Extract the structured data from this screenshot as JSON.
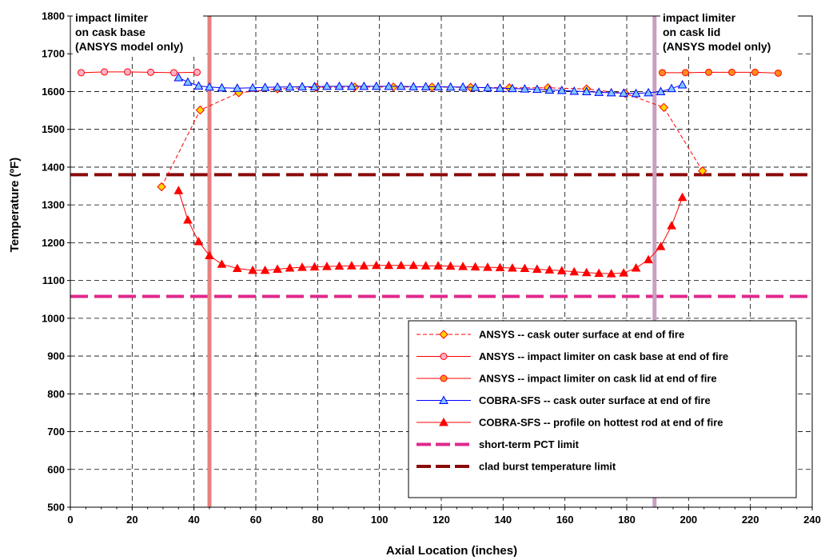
{
  "chart_data": {
    "type": "line",
    "xlabel": "Axial Location (inches)",
    "ylabel": "Temperature (ºF)",
    "xlim": [
      0,
      240
    ],
    "ylim": [
      500,
      1800
    ],
    "xticks": [
      0,
      20,
      40,
      60,
      80,
      100,
      120,
      140,
      160,
      180,
      200,
      220,
      240
    ],
    "yticks": [
      500,
      600,
      700,
      800,
      900,
      1000,
      1100,
      1200,
      1300,
      1400,
      1500,
      1600,
      1700,
      1800
    ],
    "grid": true,
    "legend_position": "bottom-right",
    "annotations": [
      {
        "lines": [
          "impact limiter",
          "on cask base",
          "(ANSYS model only)"
        ]
      },
      {
        "lines": [
          "impact limiter",
          "on cask lid",
          "(ANSYS model only)"
        ]
      }
    ],
    "vertical_lines": [
      {
        "x": 45,
        "color": "#E98080"
      },
      {
        "x": 189,
        "color": "#C9A0C0"
      }
    ],
    "horizontal_limits": [
      {
        "name": "short-term PCT limit",
        "y": 1058,
        "color": "#E0288C"
      },
      {
        "name": "clad burst temperature limit",
        "y": 1380,
        "color": "#8B0A0A"
      }
    ],
    "series": [
      {
        "name": "ANSYS -- cask outer surface at end of fire",
        "color": "#FF0000",
        "marker": "diamond",
        "marker_fill": "#FFD700",
        "dash": true,
        "x": [
          29.5,
          42,
          54.5,
          67,
          79.5,
          92,
          104.5,
          117,
          129.5,
          142,
          154.5,
          167,
          179.5,
          192,
          204.5
        ],
        "y": [
          1348,
          1551,
          1597,
          1607,
          1611,
          1612,
          1612,
          1612,
          1611,
          1610,
          1610,
          1607,
          1595,
          1558,
          1390
        ]
      },
      {
        "name": "ANSYS -- impact limiter on cask base at end of fire",
        "color": "#FF0000",
        "marker": "circle",
        "marker_fill": "#FFB0C8",
        "dash": false,
        "x": [
          3.5,
          11,
          18.5,
          26,
          33.5,
          41
        ],
        "y": [
          1650,
          1652,
          1652,
          1651,
          1650,
          1651
        ]
      },
      {
        "name": "ANSYS -- impact limiter on cask lid at end of fire",
        "color": "#FF0000",
        "marker": "circle",
        "marker_fill": "#FF8C1A",
        "dash": false,
        "x": [
          191.5,
          199,
          206.5,
          214,
          221.5,
          229
        ],
        "y": [
          1650,
          1650,
          1651,
          1651,
          1651,
          1649
        ]
      },
      {
        "name": "COBRA-SFS -- cask outer surface at end of fire",
        "color": "#0000FF",
        "marker": "triangle",
        "marker_fill": "#80C8FF",
        "dash": false,
        "x": [
          35,
          38,
          41.5,
          45,
          49,
          54,
          59,
          63,
          67,
          71,
          75,
          79,
          83,
          87,
          91,
          95,
          99,
          103,
          107,
          111,
          115,
          119,
          123,
          127,
          131,
          135,
          139,
          143,
          147,
          151,
          155,
          159,
          163,
          167,
          171,
          175,
          179,
          183,
          187,
          191,
          194.5,
          198
        ],
        "y": [
          1637,
          1625,
          1615,
          1612,
          1610,
          1609,
          1610,
          1611,
          1612,
          1612,
          1613,
          1613,
          1614,
          1614,
          1614,
          1614,
          1614,
          1614,
          1614,
          1613,
          1613,
          1613,
          1612,
          1612,
          1611,
          1610,
          1609,
          1608,
          1607,
          1606,
          1604,
          1603,
          1601,
          1600,
          1598,
          1597,
          1596,
          1595,
          1597,
          1600,
          1608,
          1618
        ]
      },
      {
        "name": "COBRA-SFS -- profile on hottest rod at end of fire",
        "color": "#FF0000",
        "marker": "triangle",
        "marker_fill": "#FF0000",
        "dash": false,
        "x": [
          35,
          38,
          41.5,
          45,
          49,
          54,
          59,
          63,
          67,
          71,
          75,
          79,
          83,
          87,
          91,
          95,
          99,
          103,
          107,
          111,
          115,
          119,
          123,
          127,
          131,
          135,
          139,
          143,
          147,
          151,
          155,
          159,
          163,
          167,
          171,
          175,
          179,
          183,
          187,
          191,
          194.5,
          198
        ],
        "y": [
          1338,
          1260,
          1203,
          1166,
          1143,
          1132,
          1127,
          1127,
          1130,
          1133,
          1135,
          1136,
          1137,
          1138,
          1139,
          1139,
          1140,
          1140,
          1140,
          1140,
          1139,
          1139,
          1138,
          1137,
          1136,
          1135,
          1134,
          1133,
          1132,
          1130,
          1128,
          1126,
          1123,
          1121,
          1119,
          1118,
          1120,
          1133,
          1155,
          1190,
          1245,
          1320
        ]
      }
    ]
  }
}
